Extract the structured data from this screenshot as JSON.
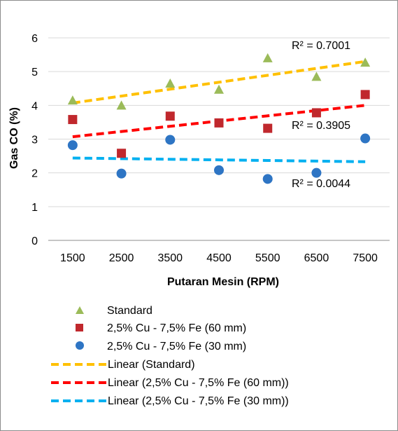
{
  "chart_data": {
    "type": "scatter",
    "title": "",
    "xlabel": "Putaran Mesin (RPM)",
    "ylabel": "Gas CO (%)",
    "categories": [
      "1500",
      "2500",
      "3500",
      "4500",
      "5500",
      "6500",
      "7500"
    ],
    "ylim": [
      0,
      6
    ],
    "yticks": [
      "0",
      "1",
      "2",
      "3",
      "4",
      "5",
      "6"
    ],
    "grid": "horizontal",
    "legend_position": "bottom",
    "series": [
      {
        "name": "Standard",
        "marker": "triangle",
        "color": "#9bbb59",
        "values": [
          4.15,
          4.0,
          4.65,
          4.47,
          5.4,
          4.85,
          5.27
        ],
        "trendline": {
          "name": "Linear (Standard)",
          "color": "#ffc000",
          "start": 4.07,
          "end": 5.3,
          "r2": "R² = 0.7001"
        }
      },
      {
        "name": "2,5% Cu  - 7,5% Fe  (60 mm)",
        "marker": "square",
        "color": "#c0282d",
        "values": [
          3.58,
          2.58,
          3.68,
          3.48,
          3.32,
          3.78,
          4.32
        ],
        "trendline": {
          "name": "Linear (2,5% Cu  - 7,5% Fe  (60 mm))",
          "color": "#ff0000",
          "start": 3.07,
          "end": 4.0,
          "r2": "R² = 0.3905"
        }
      },
      {
        "name": "2,5% Cu  -  7,5% Fe (30 mm)",
        "marker": "circle",
        "color": "#2e75c4",
        "values": [
          2.82,
          1.98,
          2.98,
          2.08,
          1.82,
          2.0,
          3.02
        ],
        "trendline": {
          "name": "Linear (2,5% Cu  -  7,5% Fe (30 mm))",
          "color": "#00b0f0",
          "start": 2.44,
          "end": 2.33,
          "r2": "R² = 0.0044"
        }
      }
    ]
  }
}
